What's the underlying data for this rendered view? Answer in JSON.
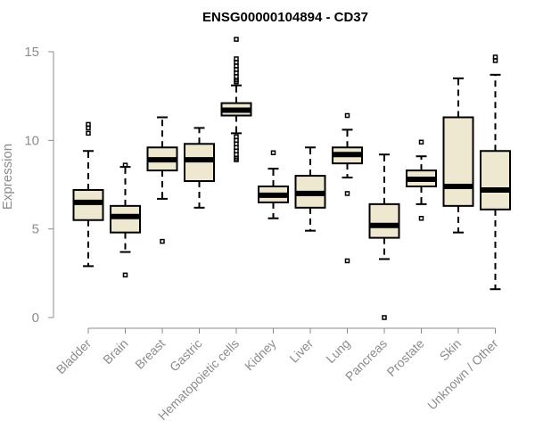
{
  "chart_data": {
    "type": "boxplot",
    "title": "ENSG00000104894 - CD37",
    "xlabel": "",
    "ylabel": "Expression",
    "ylim": [
      0,
      15
    ],
    "yticks": [
      0,
      5,
      10,
      15
    ],
    "box_fill": "#efe8d0",
    "box_stroke": "#000000",
    "axis_color": "#8c8c8c",
    "categories": [
      "Bladder",
      "Brain",
      "Breast",
      "Gastric",
      "Hematopoietic cells",
      "Kidney",
      "Liver",
      "Lung",
      "Pancreas",
      "Prostate",
      "Skin",
      "Unknown / Other"
    ],
    "boxes": [
      {
        "name": "Bladder",
        "whisker_low": 2.9,
        "q1": 5.5,
        "median": 6.5,
        "q3": 7.2,
        "whisker_high": 9.4,
        "outliers": [
          10.4,
          10.7,
          10.9
        ]
      },
      {
        "name": "Brain",
        "whisker_low": 3.7,
        "q1": 4.8,
        "median": 5.7,
        "q3": 6.3,
        "whisker_high": 8.5,
        "outliers": [
          2.4,
          8.6
        ]
      },
      {
        "name": "Breast",
        "whisker_low": 6.7,
        "q1": 8.3,
        "median": 8.9,
        "q3": 9.6,
        "whisker_high": 11.3,
        "outliers": [
          4.3
        ]
      },
      {
        "name": "Gastric",
        "whisker_low": 6.2,
        "q1": 7.7,
        "median": 8.9,
        "q3": 9.8,
        "whisker_high": 10.7,
        "outliers": []
      },
      {
        "name": "Hematopoietic cells",
        "whisker_low": 10.4,
        "q1": 11.4,
        "median": 11.7,
        "q3": 12.1,
        "whisker_high": 13.1,
        "outliers": [
          15.7,
          14.6,
          14.4,
          14.2,
          14.0,
          13.8,
          13.6,
          13.4,
          13.3,
          10.2,
          10.0,
          9.8,
          9.6,
          9.4,
          9.2,
          9.0,
          8.9
        ]
      },
      {
        "name": "Kidney",
        "whisker_low": 5.6,
        "q1": 6.5,
        "median": 6.9,
        "q3": 7.4,
        "whisker_high": 8.4,
        "outliers": [
          9.3
        ]
      },
      {
        "name": "Liver",
        "whisker_low": 4.9,
        "q1": 6.2,
        "median": 7.0,
        "q3": 8.0,
        "whisker_high": 9.6,
        "outliers": []
      },
      {
        "name": "Lung",
        "whisker_low": 7.9,
        "q1": 8.7,
        "median": 9.2,
        "q3": 9.6,
        "whisker_high": 10.6,
        "outliers": [
          11.4,
          7.0,
          3.2
        ]
      },
      {
        "name": "Pancreas",
        "whisker_low": 3.3,
        "q1": 4.5,
        "median": 5.2,
        "q3": 6.4,
        "whisker_high": 9.2,
        "outliers": [
          0.0
        ]
      },
      {
        "name": "Prostate",
        "whisker_low": 6.4,
        "q1": 7.4,
        "median": 7.8,
        "q3": 8.3,
        "whisker_high": 9.1,
        "outliers": [
          9.9,
          5.6
        ]
      },
      {
        "name": "Skin",
        "whisker_low": 4.8,
        "q1": 6.3,
        "median": 7.4,
        "q3": 11.3,
        "whisker_high": 13.5,
        "outliers": []
      },
      {
        "name": "Unknown / Other",
        "whisker_low": 1.6,
        "q1": 6.1,
        "median": 7.2,
        "q3": 9.4,
        "whisker_high": 13.7,
        "outliers": [
          14.5,
          14.7
        ]
      }
    ]
  }
}
